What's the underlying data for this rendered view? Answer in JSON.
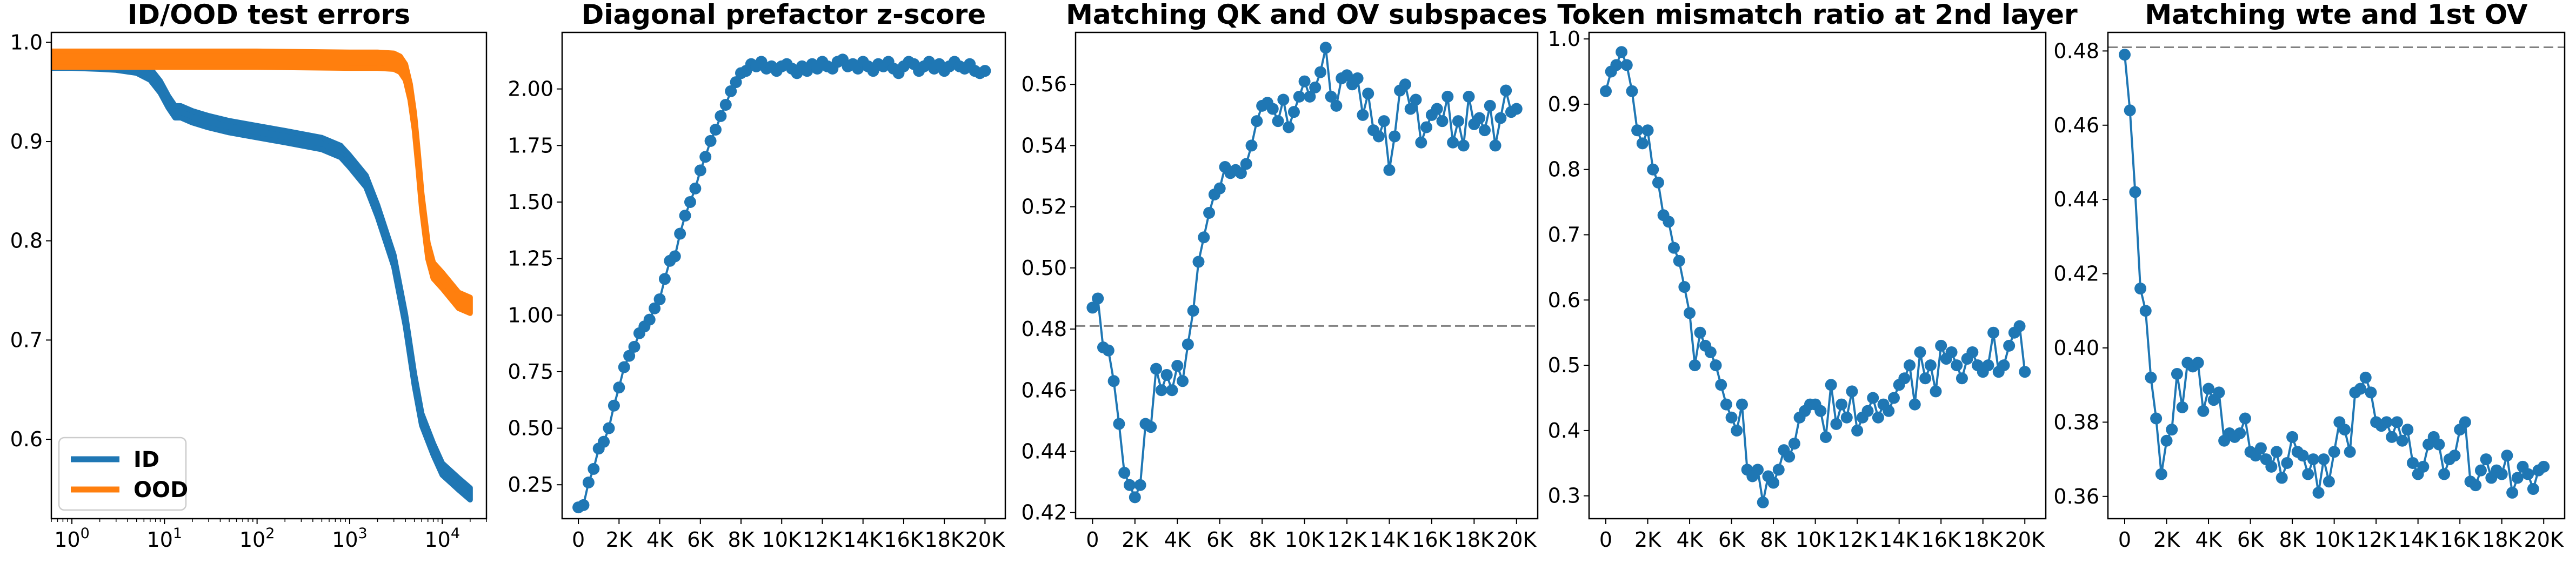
{
  "colors": {
    "blue": "#1f77b4",
    "orange": "#ff7f0e",
    "reference": "#808080"
  },
  "chart_data": [
    {
      "type": "line",
      "title": "ID/OOD test errors",
      "xscale": "log",
      "xlim": [
        0.6,
        30000
      ],
      "ylim": [
        0.52,
        1.01
      ],
      "xticks": [
        1,
        10,
        100,
        1000,
        10000
      ],
      "xtick_labels": [
        {
          "base": "10",
          "exp": "0"
        },
        {
          "base": "10",
          "exp": "1"
        },
        {
          "base": "10",
          "exp": "2"
        },
        {
          "base": "10",
          "exp": "3"
        },
        {
          "base": "10",
          "exp": "4"
        }
      ],
      "yticks": [
        0.6,
        0.7,
        0.8,
        0.9,
        1.0
      ],
      "ytick_labels": [
        "0.6",
        "0.7",
        "0.8",
        "0.9",
        "1.0"
      ],
      "legend": {
        "placement": "lower-left",
        "entries": [
          "ID",
          "OOD"
        ]
      },
      "series": [
        {
          "name": "ID",
          "color": "blue",
          "band": 0.006,
          "x": [
            0.6,
            1,
            2,
            3,
            5,
            7,
            9,
            11,
            13,
            15,
            20,
            30,
            50,
            100,
            200,
            500,
            800,
            1000,
            1500,
            2000,
            3000,
            4000,
            5000,
            6000,
            8000,
            10000,
            15000,
            20000
          ],
          "y": [
            0.98,
            0.98,
            0.979,
            0.978,
            0.975,
            0.968,
            0.955,
            0.94,
            0.93,
            0.93,
            0.925,
            0.92,
            0.915,
            0.91,
            0.905,
            0.898,
            0.89,
            0.88,
            0.86,
            0.83,
            0.78,
            0.72,
            0.66,
            0.62,
            0.59,
            0.57,
            0.555,
            0.545
          ]
        },
        {
          "name": "OOD",
          "color": "orange",
          "band": 0.008,
          "x": [
            0.6,
            1,
            10,
            100,
            1000,
            2000,
            3000,
            3500,
            4000,
            4500,
            5000,
            5500,
            6000,
            7000,
            8000,
            10000,
            15000,
            20000
          ],
          "y": [
            0.983,
            0.983,
            0.983,
            0.983,
            0.982,
            0.982,
            0.981,
            0.978,
            0.97,
            0.95,
            0.92,
            0.88,
            0.84,
            0.79,
            0.77,
            0.76,
            0.74,
            0.735
          ]
        }
      ]
    },
    {
      "type": "line",
      "title": "Diagonal prefactor z-score",
      "xlim": [
        -800,
        21000
      ],
      "ylim": [
        0.1,
        2.25
      ],
      "xticks": [
        0,
        2000,
        4000,
        6000,
        8000,
        10000,
        12000,
        14000,
        16000,
        18000,
        20000
      ],
      "xtick_labels": [
        "0",
        "2K",
        "4K",
        "6K",
        "8K",
        "10K",
        "12K",
        "14K",
        "16K",
        "18K",
        "20K"
      ],
      "yticks": [
        0.25,
        0.5,
        0.75,
        1.0,
        1.25,
        1.5,
        1.75,
        2.0
      ],
      "ytick_labels": [
        "0.25",
        "0.50",
        "0.75",
        "1.00",
        "1.25",
        "1.50",
        "1.75",
        "2.00"
      ],
      "series": [
        {
          "color": "blue",
          "markers": true,
          "x": [
            0,
            250,
            500,
            750,
            1000,
            1250,
            1500,
            1750,
            2000,
            2250,
            2500,
            2750,
            3000,
            3250,
            3500,
            3750,
            4000,
            4250,
            4500,
            4750,
            5000,
            5250,
            5500,
            5750,
            6000,
            6250,
            6500,
            6750,
            7000,
            7250,
            7500,
            7750,
            8000,
            8250,
            8500,
            8750,
            9000,
            9250,
            9500,
            9750,
            10000,
            10250,
            10500,
            10750,
            11000,
            11250,
            11500,
            11750,
            12000,
            12250,
            12500,
            12750,
            13000,
            13250,
            13500,
            13750,
            14000,
            14250,
            14500,
            14750,
            15000,
            15250,
            15500,
            15750,
            16000,
            16250,
            16500,
            16750,
            17000,
            17250,
            17500,
            17750,
            18000,
            18250,
            18500,
            18750,
            19000,
            19250,
            19500,
            19750,
            20000
          ],
          "y": [
            0.15,
            0.16,
            0.26,
            0.32,
            0.41,
            0.44,
            0.5,
            0.6,
            0.68,
            0.77,
            0.82,
            0.86,
            0.92,
            0.95,
            0.98,
            1.03,
            1.07,
            1.16,
            1.24,
            1.26,
            1.36,
            1.44,
            1.5,
            1.56,
            1.64,
            1.7,
            1.77,
            1.82,
            1.88,
            1.93,
            1.99,
            2.03,
            2.07,
            2.08,
            2.11,
            2.1,
            2.12,
            2.09,
            2.1,
            2.08,
            2.1,
            2.11,
            2.09,
            2.07,
            2.1,
            2.08,
            2.11,
            2.09,
            2.12,
            2.1,
            2.09,
            2.12,
            2.13,
            2.1,
            2.11,
            2.09,
            2.12,
            2.1,
            2.08,
            2.11,
            2.1,
            2.12,
            2.09,
            2.07,
            2.1,
            2.12,
            2.11,
            2.08,
            2.1,
            2.12,
            2.09,
            2.11,
            2.08,
            2.1,
            2.12,
            2.1,
            2.09,
            2.11,
            2.08,
            2.07,
            2.08
          ]
        }
      ]
    },
    {
      "type": "line",
      "title": "Matching QK and OV subspaces",
      "xlim": [
        -800,
        21000
      ],
      "ylim": [
        0.418,
        0.577
      ],
      "xticks": [
        0,
        2000,
        4000,
        6000,
        8000,
        10000,
        12000,
        14000,
        16000,
        18000,
        20000
      ],
      "xtick_labels": [
        "0",
        "2K",
        "4K",
        "6K",
        "8K",
        "10K",
        "12K",
        "14K",
        "16K",
        "18K",
        "20K"
      ],
      "yticks": [
        0.42,
        0.44,
        0.46,
        0.48,
        0.5,
        0.52,
        0.54,
        0.56
      ],
      "ytick_labels": [
        "0.42",
        "0.44",
        "0.46",
        "0.48",
        "0.50",
        "0.52",
        "0.54",
        "0.56"
      ],
      "reference_line": 0.481,
      "series": [
        {
          "color": "blue",
          "markers": true,
          "x": [
            0,
            250,
            500,
            750,
            1000,
            1250,
            1500,
            1750,
            2000,
            2250,
            2500,
            2750,
            3000,
            3250,
            3500,
            3750,
            4000,
            4250,
            4500,
            4750,
            5000,
            5250,
            5500,
            5750,
            6000,
            6250,
            6500,
            6750,
            7000,
            7250,
            7500,
            7750,
            8000,
            8250,
            8500,
            8750,
            9000,
            9250,
            9500,
            9750,
            10000,
            10250,
            10500,
            10750,
            11000,
            11250,
            11500,
            11750,
            12000,
            12250,
            12500,
            12750,
            13000,
            13250,
            13500,
            13750,
            14000,
            14250,
            14500,
            14750,
            15000,
            15250,
            15500,
            15750,
            16000,
            16250,
            16500,
            16750,
            17000,
            17250,
            17500,
            17750,
            18000,
            18250,
            18500,
            18750,
            19000,
            19250,
            19500,
            19750,
            20000
          ],
          "y": [
            0.487,
            0.49,
            0.474,
            0.473,
            0.463,
            0.449,
            0.433,
            0.429,
            0.425,
            0.429,
            0.449,
            0.448,
            0.467,
            0.46,
            0.465,
            0.46,
            0.468,
            0.463,
            0.475,
            0.486,
            0.502,
            0.51,
            0.518,
            0.524,
            0.526,
            0.533,
            0.531,
            0.532,
            0.531,
            0.534,
            0.54,
            0.548,
            0.553,
            0.554,
            0.552,
            0.548,
            0.555,
            0.546,
            0.551,
            0.556,
            0.561,
            0.556,
            0.559,
            0.564,
            0.572,
            0.556,
            0.553,
            0.562,
            0.563,
            0.56,
            0.562,
            0.55,
            0.557,
            0.545,
            0.543,
            0.548,
            0.532,
            0.543,
            0.558,
            0.56,
            0.552,
            0.555,
            0.541,
            0.546,
            0.55,
            0.552,
            0.548,
            0.556,
            0.541,
            0.548,
            0.54,
            0.556,
            0.547,
            0.549,
            0.545,
            0.553,
            0.54,
            0.549,
            0.558,
            0.551,
            0.552
          ]
        }
      ]
    },
    {
      "type": "line",
      "title": "Token mismatch ratio at 2nd layer",
      "xlim": [
        -800,
        21000
      ],
      "ylim": [
        0.265,
        1.01
      ],
      "xticks": [
        0,
        2000,
        4000,
        6000,
        8000,
        10000,
        12000,
        14000,
        16000,
        18000,
        20000
      ],
      "xtick_labels": [
        "0",
        "2K",
        "4K",
        "6K",
        "8K",
        "10K",
        "12K",
        "14K",
        "16K",
        "18K",
        "20K"
      ],
      "yticks": [
        0.3,
        0.4,
        0.5,
        0.6,
        0.7,
        0.8,
        0.9,
        1.0
      ],
      "ytick_labels": [
        "0.3",
        "0.4",
        "0.5",
        "0.6",
        "0.7",
        "0.8",
        "0.9",
        "1.0"
      ],
      "series": [
        {
          "color": "blue",
          "markers": true,
          "x": [
            0,
            250,
            500,
            750,
            1000,
            1250,
            1500,
            1750,
            2000,
            2250,
            2500,
            2750,
            3000,
            3250,
            3500,
            3750,
            4000,
            4250,
            4500,
            4750,
            5000,
            5250,
            5500,
            5750,
            6000,
            6250,
            6500,
            6750,
            7000,
            7250,
            7500,
            7750,
            8000,
            8250,
            8500,
            8750,
            9000,
            9250,
            9500,
            9750,
            10000,
            10250,
            10500,
            10750,
            11000,
            11250,
            11500,
            11750,
            12000,
            12250,
            12500,
            12750,
            13000,
            13250,
            13500,
            13750,
            14000,
            14250,
            14500,
            14750,
            15000,
            15250,
            15500,
            15750,
            16000,
            16250,
            16500,
            16750,
            17000,
            17250,
            17500,
            17750,
            18000,
            18250,
            18500,
            18750,
            19000,
            19250,
            19500,
            19750,
            20000
          ],
          "y": [
            0.92,
            0.95,
            0.96,
            0.98,
            0.96,
            0.92,
            0.86,
            0.84,
            0.86,
            0.8,
            0.78,
            0.73,
            0.72,
            0.68,
            0.66,
            0.62,
            0.58,
            0.5,
            0.55,
            0.53,
            0.52,
            0.5,
            0.47,
            0.44,
            0.42,
            0.4,
            0.44,
            0.34,
            0.33,
            0.34,
            0.29,
            0.33,
            0.32,
            0.34,
            0.37,
            0.36,
            0.38,
            0.42,
            0.43,
            0.44,
            0.44,
            0.43,
            0.39,
            0.47,
            0.41,
            0.44,
            0.42,
            0.46,
            0.4,
            0.42,
            0.43,
            0.45,
            0.42,
            0.44,
            0.43,
            0.45,
            0.47,
            0.48,
            0.5,
            0.44,
            0.52,
            0.48,
            0.5,
            0.46,
            0.53,
            0.51,
            0.52,
            0.5,
            0.48,
            0.51,
            0.52,
            0.5,
            0.49,
            0.5,
            0.55,
            0.49,
            0.5,
            0.53,
            0.55,
            0.56,
            0.49
          ]
        }
      ]
    },
    {
      "type": "line",
      "title": "Matching wte and 1st OV",
      "xlim": [
        -800,
        21000
      ],
      "ylim": [
        0.354,
        0.485
      ],
      "xticks": [
        0,
        2000,
        4000,
        6000,
        8000,
        10000,
        12000,
        14000,
        16000,
        18000,
        20000
      ],
      "xtick_labels": [
        "0",
        "2K",
        "4K",
        "6K",
        "8K",
        "10K",
        "12K",
        "14K",
        "16K",
        "18K",
        "20K"
      ],
      "yticks": [
        0.36,
        0.38,
        0.4,
        0.42,
        0.44,
        0.46,
        0.48
      ],
      "ytick_labels": [
        "0.36",
        "0.38",
        "0.40",
        "0.42",
        "0.44",
        "0.46",
        "0.48"
      ],
      "reference_line": 0.481,
      "series": [
        {
          "color": "blue",
          "markers": true,
          "x": [
            0,
            250,
            500,
            750,
            1000,
            1250,
            1500,
            1750,
            2000,
            2250,
            2500,
            2750,
            3000,
            3250,
            3500,
            3750,
            4000,
            4250,
            4500,
            4750,
            5000,
            5250,
            5500,
            5750,
            6000,
            6250,
            6500,
            6750,
            7000,
            7250,
            7500,
            7750,
            8000,
            8250,
            8500,
            8750,
            9000,
            9250,
            9500,
            9750,
            10000,
            10250,
            10500,
            10750,
            11000,
            11250,
            11500,
            11750,
            12000,
            12250,
            12500,
            12750,
            13000,
            13250,
            13500,
            13750,
            14000,
            14250,
            14500,
            14750,
            15000,
            15250,
            15500,
            15750,
            16000,
            16250,
            16500,
            16750,
            17000,
            17250,
            17500,
            17750,
            18000,
            18250,
            18500,
            18750,
            19000,
            19250,
            19500,
            19750,
            20000
          ],
          "y": [
            0.479,
            0.464,
            0.442,
            0.416,
            0.41,
            0.392,
            0.381,
            0.366,
            0.375,
            0.378,
            0.393,
            0.384,
            0.396,
            0.395,
            0.396,
            0.383,
            0.389,
            0.386,
            0.388,
            0.375,
            0.377,
            0.376,
            0.377,
            0.381,
            0.372,
            0.371,
            0.373,
            0.37,
            0.368,
            0.372,
            0.365,
            0.369,
            0.376,
            0.372,
            0.371,
            0.366,
            0.37,
            0.361,
            0.37,
            0.364,
            0.372,
            0.38,
            0.378,
            0.372,
            0.388,
            0.389,
            0.392,
            0.388,
            0.38,
            0.379,
            0.38,
            0.376,
            0.38,
            0.375,
            0.378,
            0.369,
            0.366,
            0.368,
            0.374,
            0.376,
            0.374,
            0.366,
            0.37,
            0.371,
            0.378,
            0.38,
            0.364,
            0.363,
            0.367,
            0.37,
            0.365,
            0.367,
            0.366,
            0.371,
            0.361,
            0.365,
            0.368,
            0.366,
            0.362,
            0.367,
            0.368
          ]
        }
      ]
    }
  ]
}
